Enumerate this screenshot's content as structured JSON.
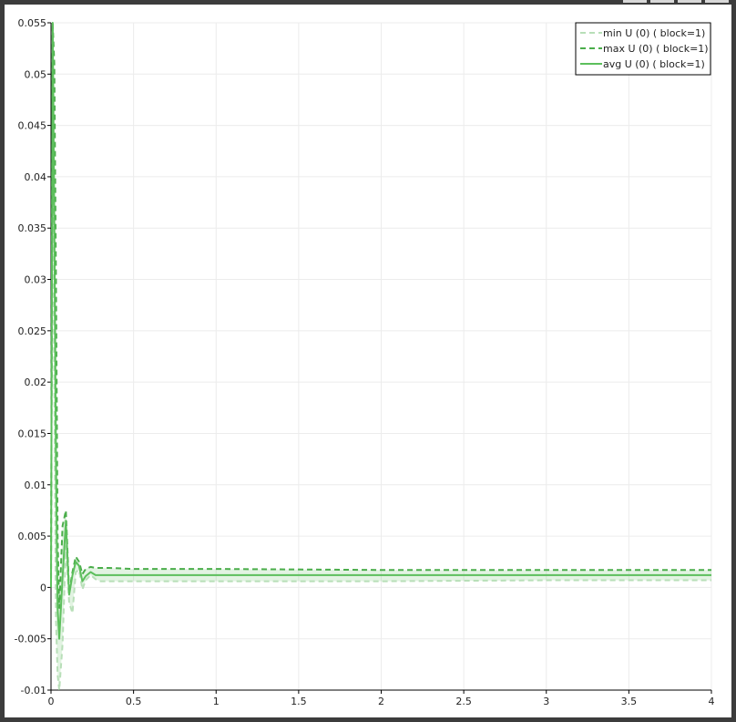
{
  "chart_data": {
    "type": "line",
    "title": "",
    "xlabel": "",
    "ylabel": "",
    "xlim": [
      0,
      4
    ],
    "ylim": [
      -0.01,
      0.055
    ],
    "grid": true,
    "legend_position": "top-right",
    "x_ticks": [
      "0",
      "0.5",
      "1",
      "1.5",
      "2",
      "2.5",
      "3",
      "3.5",
      "4"
    ],
    "y_ticks": [
      "-0.01",
      "-0.005",
      "0",
      "0.005",
      "0.01",
      "0.015",
      "0.02",
      "0.025",
      "0.03",
      "0.035",
      "0.04",
      "0.045",
      "0.05",
      "0.055"
    ],
    "series": [
      {
        "name": "min U (0) ( block=1)",
        "color": "#b8dfb8",
        "style": "dashed",
        "x": [
          0,
          0.01,
          0.02,
          0.03,
          0.04,
          0.05,
          0.07,
          0.09,
          0.11,
          0.13,
          0.15,
          0.17,
          0.19,
          0.21,
          0.24,
          0.27,
          0.3,
          0.35,
          0.5,
          1,
          2,
          3,
          4
        ],
        "y": [
          0.0,
          0.045,
          0.02,
          -0.003,
          -0.0085,
          -0.01,
          -0.0055,
          0.004,
          -0.0015,
          -0.0025,
          0.0015,
          0.0017,
          -0.0002,
          0.0007,
          0.0012,
          0.0008,
          0.0006,
          0.0006,
          0.0006,
          0.0006,
          0.0006,
          0.0007,
          0.0007
        ]
      },
      {
        "name": "max U (0) ( block=1)",
        "color": "#4aad4a",
        "style": "dashed",
        "x": [
          0,
          0.01,
          0.02,
          0.03,
          0.04,
          0.05,
          0.07,
          0.09,
          0.11,
          0.13,
          0.15,
          0.17,
          0.19,
          0.21,
          0.24,
          0.27,
          0.3,
          0.35,
          0.5,
          1,
          2,
          3,
          4
        ],
        "y": [
          0.0,
          0.055,
          0.051,
          0.03,
          0.005,
          -0.002,
          0.006,
          0.0075,
          -0.0005,
          0.0015,
          0.003,
          0.0025,
          0.0013,
          0.0018,
          0.002,
          0.0019,
          0.0019,
          0.0019,
          0.0018,
          0.0018,
          0.0017,
          0.0017,
          0.0017
        ]
      },
      {
        "name": "avg U (0) ( block=1)",
        "color": "#5cbf5c",
        "style": "solid",
        "x": [
          0,
          0.01,
          0.02,
          0.03,
          0.04,
          0.05,
          0.07,
          0.09,
          0.11,
          0.13,
          0.15,
          0.17,
          0.19,
          0.21,
          0.24,
          0.27,
          0.3,
          0.35,
          0.5,
          1,
          2,
          3,
          4
        ],
        "y": [
          0.0,
          0.055,
          0.035,
          0.012,
          -0.002,
          -0.005,
          0.001,
          0.0065,
          -0.0007,
          0.0012,
          0.0025,
          0.0021,
          0.0006,
          0.0011,
          0.0015,
          0.0012,
          0.0012,
          0.0012,
          0.0012,
          0.0012,
          0.0012,
          0.0012,
          0.0012
        ]
      }
    ]
  }
}
